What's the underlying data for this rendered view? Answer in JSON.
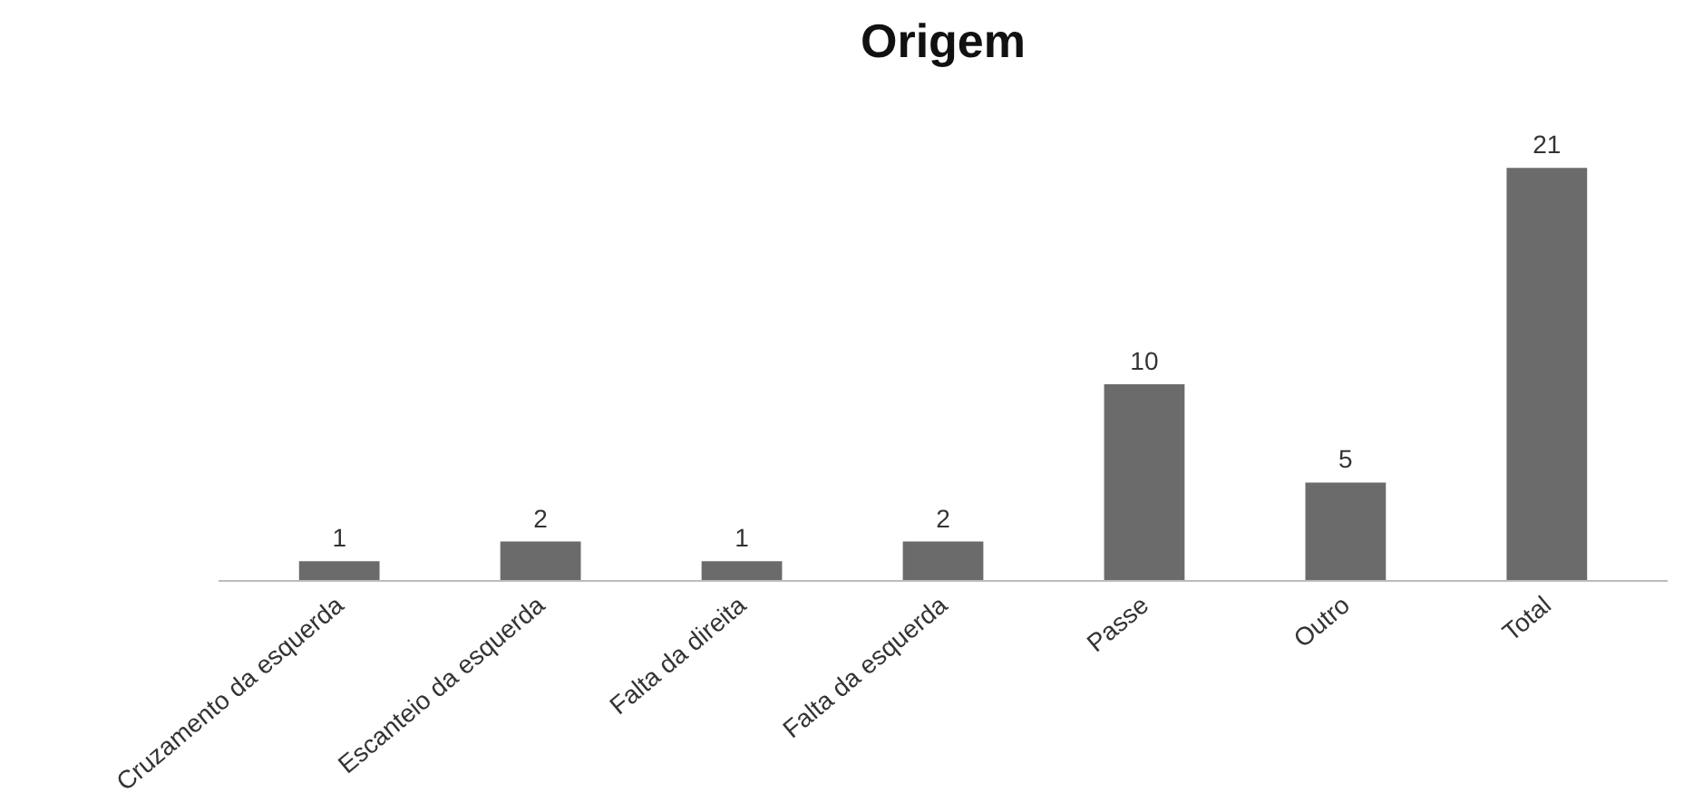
{
  "chart_data": {
    "type": "bar",
    "title": "Origem",
    "categories": [
      "Cruzamento da esquerda",
      "Escanteio da esquerda",
      "Falta da direita",
      "Falta da esquerda",
      "Passe",
      "Outro",
      "Total"
    ],
    "values": [
      1,
      2,
      1,
      2,
      10,
      5,
      21
    ],
    "color": "#6b6b6b",
    "data_labels": true,
    "grid": false
  }
}
